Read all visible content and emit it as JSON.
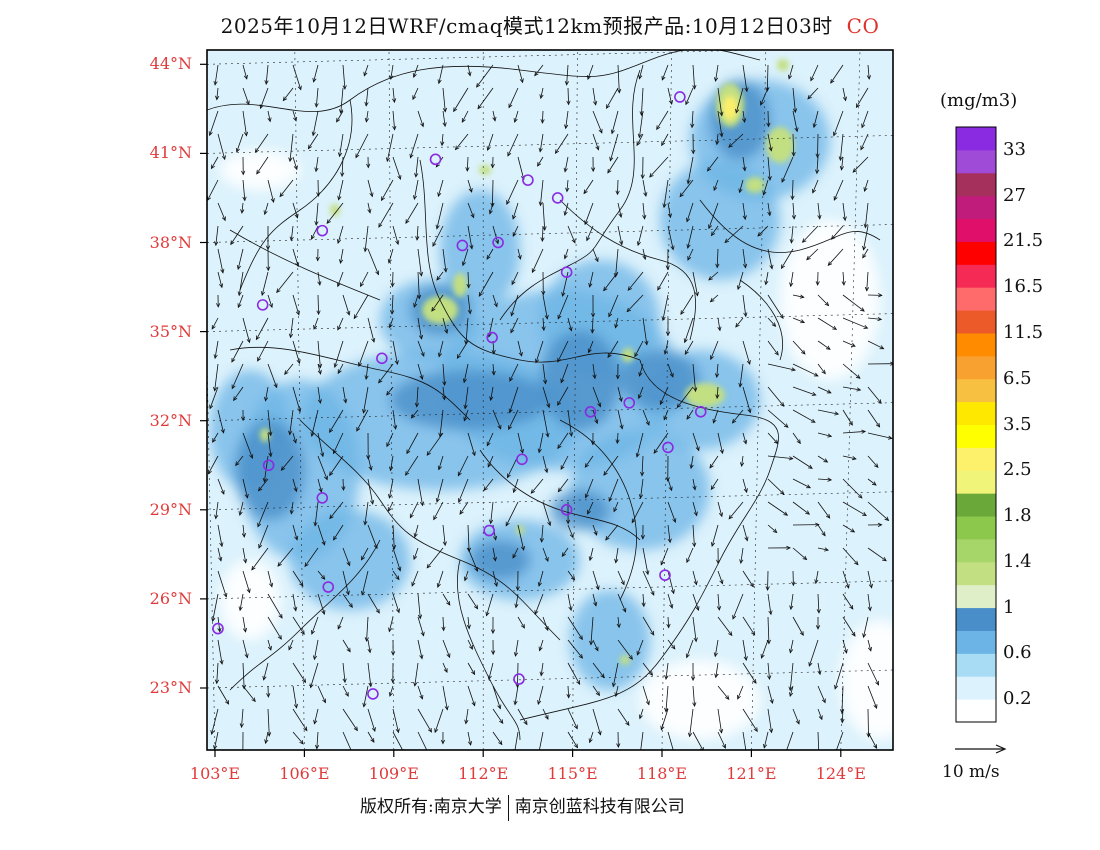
{
  "title": "2025年10月12日WRF/cmaq模式12km预报产品:10月12日03时",
  "variable": "CO",
  "units": "(mg/m3)",
  "lat_labels": [
    "44°N",
    "41°N",
    "38°N",
    "35°N",
    "32°N",
    "29°N",
    "26°N",
    "23°N"
  ],
  "lon_labels": [
    "103°E",
    "106°E",
    "109°E",
    "112°E",
    "115°E",
    "118°E",
    "121°E",
    "124°E"
  ],
  "colorbar": {
    "colors": [
      "#ffffff",
      "#dcf2fc",
      "#a8dcf5",
      "#6db4e6",
      "#4a8ec9",
      "#dff0c8",
      "#c2df82",
      "#a6d56a",
      "#8cc84b",
      "#6aa83a",
      "#f0f57a",
      "#fdf06a",
      "#ffff00",
      "#ffe800",
      "#f8c040",
      "#f8a030",
      "#ff8c00",
      "#ec5a2a",
      "#ff6a6a",
      "#f52a55",
      "#ff0000",
      "#e0106a",
      "#c01c7c",
      "#a6305c",
      "#a04ad8",
      "#8a2be2"
    ],
    "labels": [
      {
        "index": 0,
        "text": "0.2"
      },
      {
        "index": 2,
        "text": "0.6"
      },
      {
        "index": 4,
        "text": "1"
      },
      {
        "index": 6,
        "text": "1.4"
      },
      {
        "index": 8,
        "text": "1.8"
      },
      {
        "index": 10,
        "text": "2.5"
      },
      {
        "index": 12,
        "text": "3.5"
      },
      {
        "index": 14,
        "text": "6.5"
      },
      {
        "index": 16,
        "text": "11.5"
      },
      {
        "index": 18,
        "text": "16.5"
      },
      {
        "index": 20,
        "text": "21.5"
      },
      {
        "index": 22,
        "text": "27"
      },
      {
        "index": 24,
        "text": "33"
      }
    ]
  },
  "wind_scale_label": "10 m/s",
  "footer": {
    "left": "版权所有:南京大学",
    "right": "南京创蓝科技有限公司"
  },
  "stations": [
    {
      "lon": 118.6,
      "lat": 42.9
    },
    {
      "lon": 110.4,
      "lat": 40.8
    },
    {
      "lon": 113.5,
      "lat": 40.1
    },
    {
      "lon": 114.5,
      "lat": 39.5
    },
    {
      "lon": 106.6,
      "lat": 38.4
    },
    {
      "lon": 111.3,
      "lat": 37.9
    },
    {
      "lon": 112.5,
      "lat": 38.0
    },
    {
      "lon": 114.8,
      "lat": 37.0
    },
    {
      "lon": 104.6,
      "lat": 35.9
    },
    {
      "lon": 112.3,
      "lat": 34.8
    },
    {
      "lon": 108.6,
      "lat": 34.1
    },
    {
      "lon": 116.9,
      "lat": 32.6
    },
    {
      "lon": 115.6,
      "lat": 32.3
    },
    {
      "lon": 119.3,
      "lat": 32.3
    },
    {
      "lon": 118.2,
      "lat": 31.1
    },
    {
      "lon": 104.8,
      "lat": 30.5
    },
    {
      "lon": 113.3,
      "lat": 30.7
    },
    {
      "lon": 106.6,
      "lat": 29.4
    },
    {
      "lon": 114.8,
      "lat": 29.0
    },
    {
      "lon": 112.2,
      "lat": 28.3
    },
    {
      "lon": 118.1,
      "lat": 26.8
    },
    {
      "lon": 106.8,
      "lat": 26.4
    },
    {
      "lon": 103.1,
      "lat": 25.0
    },
    {
      "lon": 108.3,
      "lat": 22.8
    },
    {
      "lon": 113.2,
      "lat": 23.3
    }
  ]
}
